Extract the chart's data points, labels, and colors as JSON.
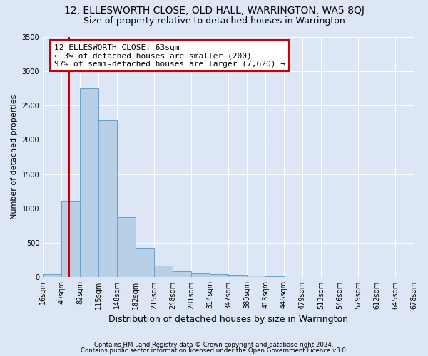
{
  "title": "12, ELLESWORTH CLOSE, OLD HALL, WARRINGTON, WA5 8QJ",
  "subtitle": "Size of property relative to detached houses in Warrington",
  "xlabel": "Distribution of detached houses by size in Warrington",
  "ylabel": "Number of detached properties",
  "footnote1": "Contains HM Land Registry data © Crown copyright and database right 2024.",
  "footnote2": "Contains public sector information licensed under the Open Government Licence v3.0.",
  "bin_labels": [
    "16sqm",
    "49sqm",
    "82sqm",
    "115sqm",
    "148sqm",
    "182sqm",
    "215sqm",
    "248sqm",
    "281sqm",
    "314sqm",
    "347sqm",
    "380sqm",
    "413sqm",
    "446sqm",
    "479sqm",
    "513sqm",
    "546sqm",
    "579sqm",
    "612sqm",
    "645sqm",
    "678sqm"
  ],
  "bar_values": [
    50,
    1100,
    2750,
    2280,
    870,
    420,
    175,
    90,
    60,
    50,
    35,
    30,
    10,
    5,
    0,
    0,
    0,
    0,
    0,
    0
  ],
  "bar_color": "#b8cfe8",
  "bar_edge_color": "#6b9ec8",
  "ylim": [
    0,
    3500
  ],
  "annotation_line1": "12 ELLESWORTH CLOSE: 63sqm",
  "annotation_line2": "← 3% of detached houses are smaller (200)",
  "annotation_line3": "97% of semi-detached houses are larger (7,620) →",
  "property_line_color": "#cc0000",
  "annotation_box_facecolor": "#ffffff",
  "annotation_box_edgecolor": "#cc0000",
  "bg_color": "#dce6f5",
  "plot_bg_color": "#dce6f5",
  "grid_color": "#ffffff",
  "title_fontsize": 10,
  "subtitle_fontsize": 9
}
